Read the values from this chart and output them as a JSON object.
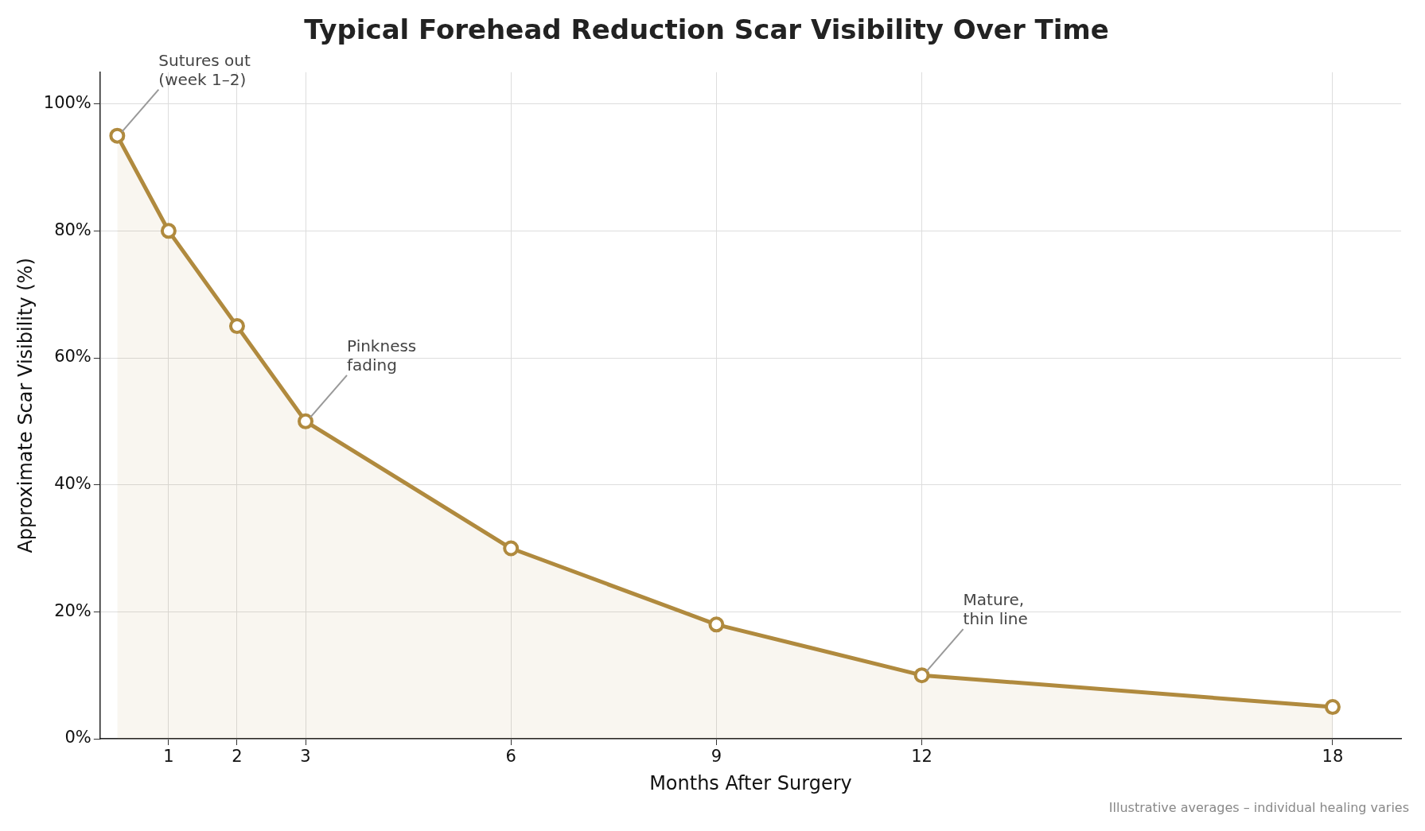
{
  "chart_data": {
    "type": "area",
    "title": "Typical Forehead Reduction Scar Visibility Over Time",
    "xlabel": "Months After Surgery",
    "ylabel": "Approximate Scar Visibility (%)",
    "x": [
      0.25,
      1,
      2,
      3,
      6,
      9,
      12,
      18
    ],
    "series": [
      {
        "color": "#b08a3e",
        "values": [
          95,
          80,
          65,
          50,
          30,
          18,
          10,
          5
        ]
      }
    ],
    "xlim": [
      0,
      19
    ],
    "xticks": [
      1,
      2,
      3,
      6,
      9,
      12,
      18
    ],
    "ylim": [
      0,
      105
    ],
    "yticks": [
      {
        "value": 0,
        "label": "0%"
      },
      {
        "value": 20,
        "label": "20%"
      },
      {
        "value": 40,
        "label": "40%"
      },
      {
        "value": 60,
        "label": "60%"
      },
      {
        "value": 80,
        "label": "80%"
      },
      {
        "value": 100,
        "label": "100%"
      }
    ],
    "grid": true,
    "legend": false,
    "marker": "circle",
    "line_style": "solid",
    "annotations": [
      {
        "text": "Sutures out\n(week 1–2)",
        "x": 0.25,
        "y": 95
      },
      {
        "text": "Pinkness\nfading",
        "x": 3,
        "y": 50
      },
      {
        "text": "Mature,\nthin line",
        "x": 12,
        "y": 10
      },
      "Illustrative averages – individual healing varies"
    ]
  }
}
